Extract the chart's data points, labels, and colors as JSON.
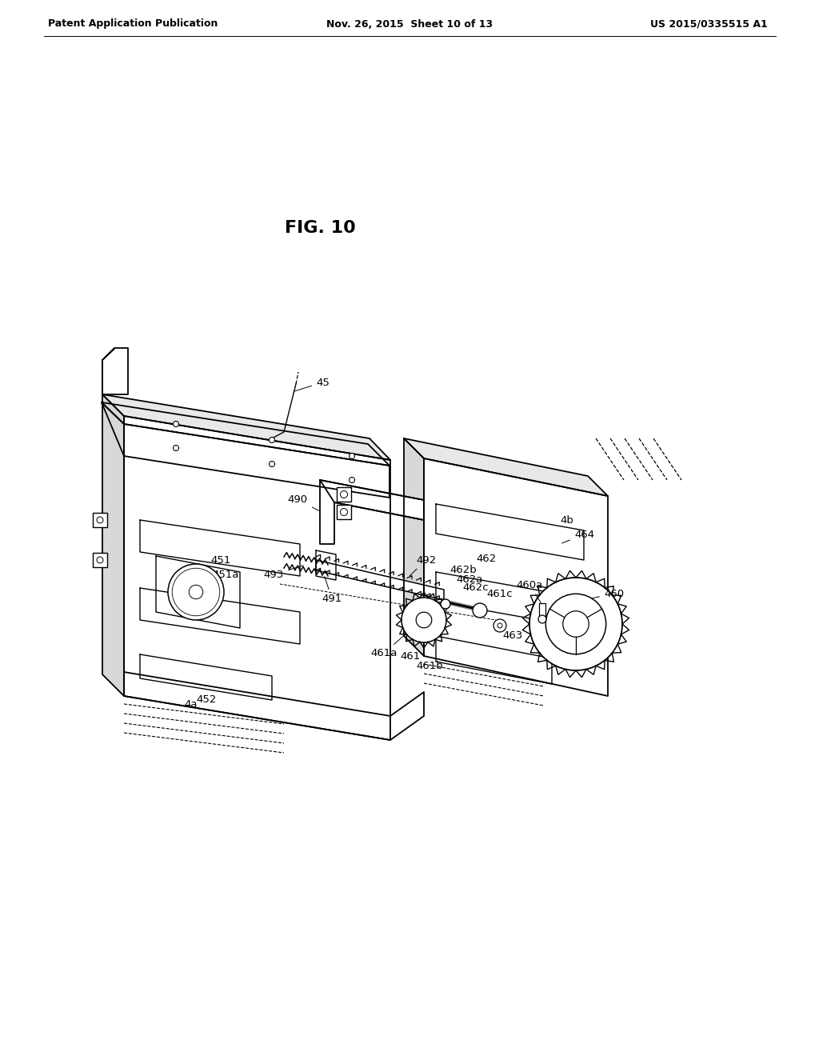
{
  "bg_color": "#ffffff",
  "header_left": "Patent Application Publication",
  "header_mid": "Nov. 26, 2015  Sheet 10 of 13",
  "header_right": "US 2015/0335515 A1",
  "fig_title": "FIG. 10"
}
